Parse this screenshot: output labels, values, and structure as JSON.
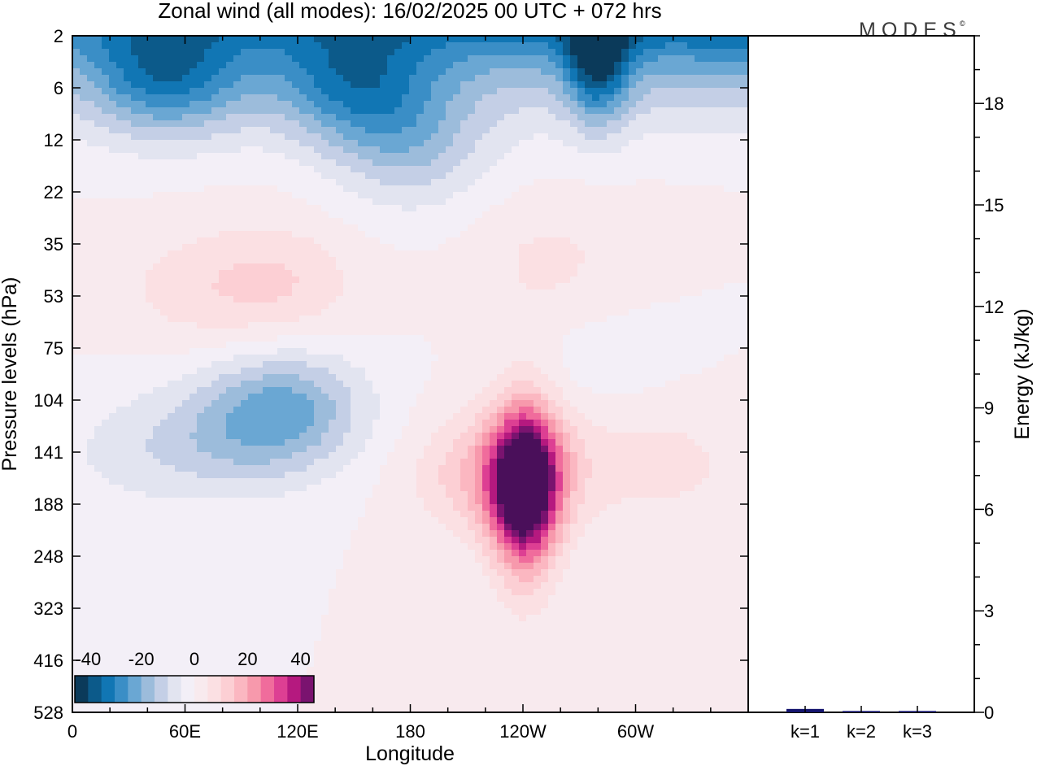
{
  "title": "Zonal wind (all modes):  16/02/2025  00 UTC  + 072 hrs",
  "brand": "MODES",
  "brand_mark": "©",
  "colors": {
    "neg": [
      "#0b3a5a",
      "#0c5a8a",
      "#1176b4",
      "#3a8ec6",
      "#6aa7d3",
      "#9cbcdb",
      "#c4cfe6",
      "#e2e4f0",
      "#f3eff7"
    ],
    "pos": [
      "#f8eaee",
      "#fbe0e3",
      "#fccfd4",
      "#fbb7c1",
      "#f799ac",
      "#f06c9c",
      "#dd3f93",
      "#b5197f",
      "#7a136f",
      "#4a0f5a"
    ],
    "energy_bar": "#14146e"
  },
  "chart_data": [
    {
      "type": "heatmap",
      "xlabel": "Longitude",
      "ylabel": "Pressure levels (hPa)",
      "x_ticks": [
        "0",
        "60E",
        "120E",
        "180",
        "120W",
        "60W"
      ],
      "x_range_deg_east": [
        0,
        360
      ],
      "y_ticks": [
        "2",
        "6",
        "12",
        "22",
        "35",
        "53",
        "75",
        "104",
        "141",
        "188",
        "248",
        "323",
        "416",
        "528"
      ],
      "colorbar": {
        "ticks": [
          "-40",
          "-20",
          "0",
          "20",
          "40"
        ],
        "range": [
          -45,
          45
        ],
        "step": 5
      },
      "features": [
        {
          "level_hPa": 172,
          "lon": 241,
          "value": 42
        },
        {
          "level_hPa": 160,
          "lon": 228,
          "value": 18
        },
        {
          "level_hPa": 140,
          "lon": 270,
          "value": 3
        },
        {
          "level_hPa": 150,
          "lon": 320,
          "value": 6
        },
        {
          "level_hPa": 48,
          "lon": 110,
          "value": 10
        },
        {
          "level_hPa": 50,
          "lon": 60,
          "value": 6
        },
        {
          "level_hPa": 40,
          "lon": 255,
          "value": 6
        },
        {
          "level_hPa": 110,
          "lon": 115,
          "value": -20
        },
        {
          "level_hPa": 130,
          "lon": 80,
          "value": -10
        },
        {
          "level_hPa": 140,
          "lon": 30,
          "value": -6
        },
        {
          "level_hPa": 85,
          "lon": 280,
          "value": -3
        },
        {
          "level_hPa": 3,
          "lon": 280,
          "value": -45
        },
        {
          "level_hPa": 6,
          "lon": 150,
          "value": -32
        },
        {
          "level_hPa": 5,
          "lon": 50,
          "value": -22
        },
        {
          "level_hPa": 13,
          "lon": 180,
          "value": -14
        }
      ]
    },
    {
      "type": "bar",
      "categories": [
        "k=1",
        "k=2",
        "k=3"
      ],
      "values": [
        0.1,
        0.04,
        0.04
      ],
      "ylabel": "Energy (kJ/kg)",
      "ylim": [
        0,
        20
      ],
      "y_ticks": [
        "0",
        "3",
        "6",
        "9",
        "12",
        "15",
        "18"
      ]
    }
  ]
}
